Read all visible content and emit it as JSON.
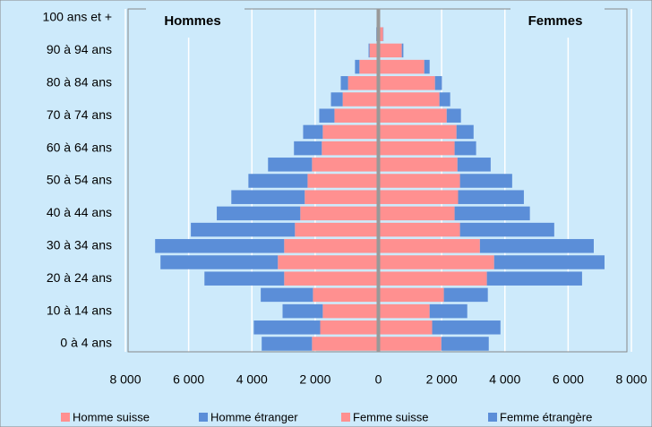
{
  "chart_data": {
    "type": "pyramid",
    "left_label": "Hommes",
    "right_label": "Femmes",
    "categories": [
      "0 à 4 ans",
      null,
      "10 à 14 ans",
      null,
      "20 à 24 ans",
      null,
      "30 à 34 ans",
      null,
      "40 à 44 ans",
      null,
      "50 à 54 ans",
      null,
      "60 à 64 ans",
      null,
      "70 à 74 ans",
      null,
      "80 à 84 ans",
      null,
      "90 à 94 ans",
      null,
      "100 ans et +"
    ],
    "series": [
      {
        "name": "Homme suisse",
        "side": "left",
        "color": "#ff9090",
        "values": [
          2100,
          1840,
          1760,
          2070,
          2980,
          3180,
          2980,
          2640,
          2470,
          2330,
          2240,
          2100,
          1790,
          1760,
          1390,
          1130,
          960,
          600,
          280,
          60,
          10
        ]
      },
      {
        "name": "Homme étranger",
        "side": "left",
        "color": "#5b8ed8",
        "values": [
          1590,
          2100,
          1270,
          1650,
          2520,
          3710,
          4080,
          3290,
          2640,
          2320,
          1870,
          1390,
          880,
          620,
          480,
          370,
          230,
          140,
          30,
          10,
          0
        ]
      },
      {
        "name": "Femme suisse",
        "side": "right",
        "color": "#ff9090",
        "values": [
          1990,
          1700,
          1620,
          2070,
          3430,
          3660,
          3210,
          2580,
          2410,
          2520,
          2580,
          2500,
          2410,
          2470,
          2160,
          1930,
          1790,
          1450,
          740,
          150,
          20
        ]
      },
      {
        "name": "Femme étrangère",
        "side": "right",
        "color": "#5b8ed8",
        "values": [
          1500,
          2160,
          1190,
          1390,
          3010,
          3490,
          3600,
          2980,
          2380,
          2080,
          1650,
          1050,
          680,
          540,
          450,
          340,
          220,
          170,
          50,
          10,
          0
        ]
      }
    ],
    "xlim": [
      -8000,
      8000
    ],
    "xticks": [
      {
        "value": -8000,
        "label": "8 000"
      },
      {
        "value": -6000,
        "label": "6 000"
      },
      {
        "value": -4000,
        "label": "4 000"
      },
      {
        "value": -2000,
        "label": "2 000"
      },
      0,
      {
        "value": 2000,
        "label": "2 000"
      },
      {
        "value": 4000,
        "label": "4 000"
      },
      {
        "value": 6000,
        "label": "6 000"
      },
      {
        "value": 8000,
        "label": "8 000"
      }
    ],
    "grid": true
  }
}
